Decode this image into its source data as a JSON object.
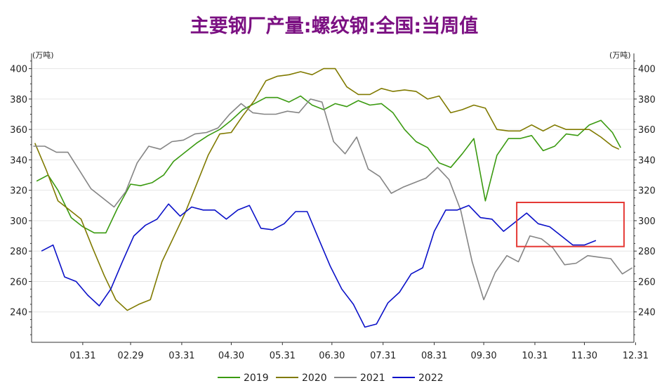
{
  "chart_data": {
    "type": "line",
    "title": "主要钢厂产量:螺纹钢:全国:当周值",
    "title_color": "#7b1082",
    "y_unit_left": "(万吨)",
    "y_unit_right": "(万吨)",
    "ylim": [
      220,
      410
    ],
    "yticks": [
      240,
      260,
      280,
      300,
      320,
      340,
      360,
      380,
      400
    ],
    "ytick_labels": [
      "240",
      "260",
      "280",
      "300",
      "320",
      "340",
      "360",
      "380",
      "400"
    ],
    "x_domain": [
      0,
      365
    ],
    "x_ticks": [
      {
        "x": 31,
        "label": "01.31"
      },
      {
        "x": 60,
        "label": "02.29"
      },
      {
        "x": 91,
        "label": "03.31"
      },
      {
        "x": 121,
        "label": "04.30"
      },
      {
        "x": 152,
        "label": "05.31"
      },
      {
        "x": 182,
        "label": "06.30"
      },
      {
        "x": 213,
        "label": "07.31"
      },
      {
        "x": 244,
        "label": "08.31"
      },
      {
        "x": 274,
        "label": "09.30"
      },
      {
        "x": 305,
        "label": "10.31"
      },
      {
        "x": 335,
        "label": "11.30"
      },
      {
        "x": 366,
        "label": "12.31"
      }
    ],
    "grid": true,
    "legend_position": "bottom",
    "highlight_box": {
      "x_range": [
        294,
        359
      ],
      "y_range": [
        283,
        312
      ],
      "color": "#e53935"
    },
    "series": [
      {
        "name": "2019",
        "color": "#3a9a10",
        "points": [
          [
            3,
            326
          ],
          [
            10,
            330
          ],
          [
            16,
            320
          ],
          [
            24,
            302
          ],
          [
            31,
            296
          ],
          [
            38,
            292
          ],
          [
            45,
            292
          ],
          [
            52,
            308
          ],
          [
            60,
            324
          ],
          [
            66,
            323
          ],
          [
            73,
            325
          ],
          [
            80,
            330
          ],
          [
            86,
            339
          ],
          [
            93,
            345
          ],
          [
            100,
            351
          ],
          [
            107,
            356
          ],
          [
            114,
            360
          ],
          [
            121,
            366
          ],
          [
            128,
            373
          ],
          [
            135,
            377
          ],
          [
            142,
            381
          ],
          [
            149,
            381
          ],
          [
            156,
            378
          ],
          [
            163,
            382
          ],
          [
            170,
            376
          ],
          [
            177,
            373
          ],
          [
            184,
            377
          ],
          [
            191,
            375
          ],
          [
            198,
            379
          ],
          [
            205,
            376
          ],
          [
            212,
            377
          ],
          [
            219,
            371
          ],
          [
            226,
            360
          ],
          [
            233,
            352
          ],
          [
            240,
            348
          ],
          [
            247,
            338
          ],
          [
            254,
            335
          ],
          [
            261,
            344
          ],
          [
            268,
            354
          ],
          [
            275,
            313
          ],
          [
            282,
            343
          ],
          [
            289,
            354
          ],
          [
            296,
            354
          ],
          [
            303,
            356
          ],
          [
            310,
            346
          ],
          [
            317,
            349
          ],
          [
            324,
            357
          ],
          [
            331,
            356
          ],
          [
            338,
            363
          ],
          [
            345,
            366
          ],
          [
            352,
            358
          ],
          [
            357,
            348
          ]
        ]
      },
      {
        "name": "2020",
        "color": "#807a00",
        "points": [
          [
            2,
            351
          ],
          [
            9,
            333
          ],
          [
            16,
            313
          ],
          [
            23,
            307
          ],
          [
            30,
            301
          ],
          [
            37,
            282
          ],
          [
            44,
            264
          ],
          [
            51,
            248
          ],
          [
            58,
            241
          ],
          [
            65,
            245
          ],
          [
            72,
            248
          ],
          [
            79,
            273
          ],
          [
            86,
            289
          ],
          [
            93,
            305
          ],
          [
            100,
            324
          ],
          [
            107,
            343
          ],
          [
            114,
            357
          ],
          [
            121,
            358
          ],
          [
            128,
            369
          ],
          [
            135,
            379
          ],
          [
            142,
            392
          ],
          [
            149,
            395
          ],
          [
            156,
            396
          ],
          [
            163,
            398
          ],
          [
            170,
            396
          ],
          [
            177,
            400
          ],
          [
            184,
            400
          ],
          [
            191,
            388
          ],
          [
            198,
            383
          ],
          [
            205,
            383
          ],
          [
            212,
            387
          ],
          [
            219,
            385
          ],
          [
            226,
            386
          ],
          [
            233,
            385
          ],
          [
            240,
            380
          ],
          [
            247,
            382
          ],
          [
            254,
            371
          ],
          [
            261,
            373
          ],
          [
            268,
            376
          ],
          [
            275,
            374
          ],
          [
            282,
            360
          ],
          [
            289,
            359
          ],
          [
            296,
            359
          ],
          [
            303,
            363
          ],
          [
            310,
            359
          ],
          [
            317,
            363
          ],
          [
            324,
            360
          ],
          [
            331,
            360
          ],
          [
            338,
            360
          ],
          [
            345,
            355
          ],
          [
            352,
            349
          ],
          [
            356,
            347
          ]
        ]
      },
      {
        "name": "2021",
        "color": "#858585",
        "points": [
          [
            1,
            349
          ],
          [
            8,
            349
          ],
          [
            15,
            345
          ],
          [
            22,
            345
          ],
          [
            29,
            333
          ],
          [
            36,
            321
          ],
          [
            43,
            315
          ],
          [
            50,
            309
          ],
          [
            57,
            319
          ],
          [
            64,
            338
          ],
          [
            71,
            349
          ],
          [
            78,
            347
          ],
          [
            85,
            352
          ],
          [
            92,
            353
          ],
          [
            99,
            357
          ],
          [
            106,
            358
          ],
          [
            113,
            361
          ],
          [
            120,
            370
          ],
          [
            127,
            377
          ],
          [
            134,
            371
          ],
          [
            141,
            370
          ],
          [
            148,
            370
          ],
          [
            155,
            372
          ],
          [
            162,
            371
          ],
          [
            169,
            380
          ],
          [
            176,
            378
          ],
          [
            183,
            352
          ],
          [
            190,
            344
          ],
          [
            197,
            355
          ],
          [
            204,
            334
          ],
          [
            211,
            329
          ],
          [
            218,
            318
          ],
          [
            225,
            322
          ],
          [
            232,
            325
          ],
          [
            239,
            328
          ],
          [
            246,
            335
          ],
          [
            253,
            327
          ],
          [
            260,
            307
          ],
          [
            267,
            273
          ],
          [
            274,
            248
          ],
          [
            281,
            266
          ],
          [
            288,
            277
          ],
          [
            295,
            273
          ],
          [
            302,
            290
          ],
          [
            309,
            288
          ],
          [
            316,
            282
          ],
          [
            323,
            271
          ],
          [
            330,
            272
          ],
          [
            337,
            277
          ],
          [
            344,
            276
          ],
          [
            351,
            275
          ],
          [
            358,
            265
          ],
          [
            364,
            269
          ]
        ]
      },
      {
        "name": "2022",
        "color": "#0a10c8",
        "points": [
          [
            6,
            280
          ],
          [
            13,
            284
          ],
          [
            20,
            263
          ],
          [
            27,
            260
          ],
          [
            34,
            251
          ],
          [
            41,
            244
          ],
          [
            48,
            255
          ],
          [
            55,
            273
          ],
          [
            62,
            290
          ],
          [
            69,
            297
          ],
          [
            76,
            301
          ],
          [
            83,
            311
          ],
          [
            90,
            303
          ],
          [
            97,
            309
          ],
          [
            104,
            307
          ],
          [
            111,
            307
          ],
          [
            118,
            301
          ],
          [
            125,
            307
          ],
          [
            132,
            310
          ],
          [
            139,
            295
          ],
          [
            146,
            294
          ],
          [
            153,
            298
          ],
          [
            160,
            306
          ],
          [
            167,
            306
          ],
          [
            174,
            288
          ],
          [
            181,
            270
          ],
          [
            188,
            255
          ],
          [
            195,
            245
          ],
          [
            202,
            230
          ],
          [
            209,
            232
          ],
          [
            216,
            246
          ],
          [
            223,
            253
          ],
          [
            230,
            265
          ],
          [
            237,
            269
          ],
          [
            244,
            293
          ],
          [
            251,
            307
          ],
          [
            258,
            307
          ],
          [
            265,
            310
          ],
          [
            272,
            302
          ],
          [
            279,
            301
          ],
          [
            286,
            293
          ],
          [
            293,
            299
          ],
          [
            300,
            305
          ],
          [
            307,
            298
          ],
          [
            314,
            296
          ],
          [
            321,
            290
          ],
          [
            328,
            284
          ],
          [
            335,
            284
          ],
          [
            342,
            287
          ]
        ]
      }
    ]
  }
}
